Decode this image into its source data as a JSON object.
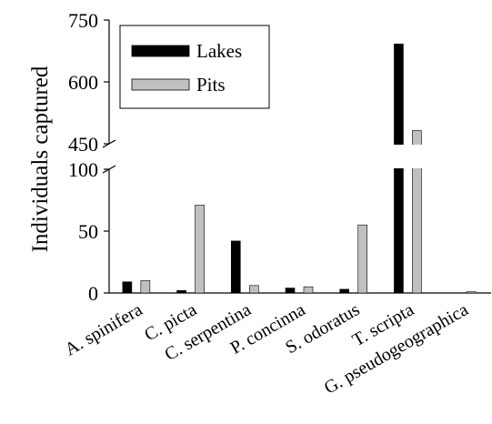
{
  "chart_data": {
    "type": "bar",
    "title": "",
    "xlabel": "",
    "ylabel": "Individuals captured",
    "axis_break": {
      "lower_range": [
        0,
        100
      ],
      "upper_range": [
        450,
        750
      ]
    },
    "lower_ticks": [
      0,
      50,
      100
    ],
    "upper_ticks": [
      450,
      600,
      750
    ],
    "categories": [
      "A. spinifera",
      "C. picta",
      "C. serpentina",
      "P. concinna",
      "S. odoratus",
      "T. scripta",
      "G. pseudogeographica"
    ],
    "series": [
      {
        "name": "Lakes",
        "color": "#000000",
        "values": [
          9,
          2,
          42,
          4,
          3,
          692,
          0
        ]
      },
      {
        "name": "Pits",
        "color": "#c0c0c0",
        "values": [
          10,
          71,
          6,
          5,
          55,
          482,
          1
        ]
      }
    ],
    "legend_position": "top-left",
    "grid": false
  }
}
